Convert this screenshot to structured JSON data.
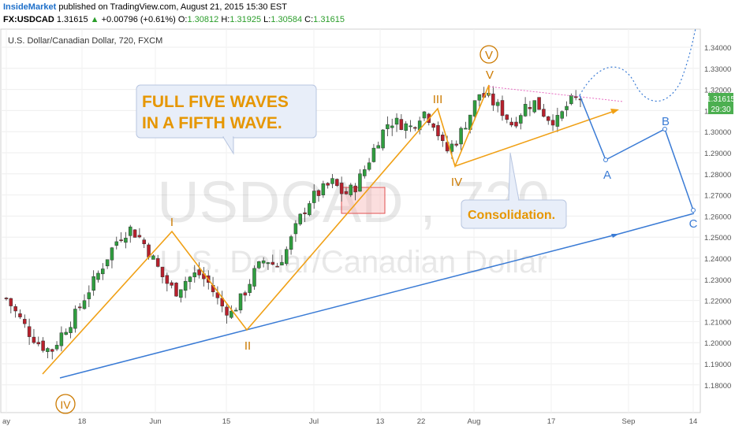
{
  "header": {
    "brand": "InsideMarket",
    "published": "published on TradingView.com, August 21, 2015 15:30 EST",
    "symbol": "FX:USDCAD",
    "last": "1.31615",
    "change_arrow": "▲",
    "change": "+0.00796 (+0.61%)",
    "o_label": "O:",
    "o": "1.30812",
    "h_label": "H:",
    "h": "1.31925",
    "l_label": "L:",
    "l": "1.30584",
    "c_label": "C:",
    "c": "1.31615"
  },
  "chart_title": "U.S. Dollar/Canadian Dollar, 720, FXCM",
  "watermark": {
    "symbol": "USDCAD , 720",
    "name": "U.S. Dollar/Canadian Dollar"
  },
  "price_badge": {
    "price": "1.31615",
    "countdown": "29:30"
  },
  "callouts": {
    "main": [
      "FULL FIVE WAVES",
      "IN A FIFTH WAVE."
    ],
    "consolidation": "Consolidation."
  },
  "wave_labels": {
    "I": "I",
    "II": "II",
    "III": "III",
    "IV": "IV",
    "V": "V",
    "circled_V": "V",
    "circled_IV": "IV",
    "A": "A",
    "B": "B",
    "C": "C"
  },
  "colors": {
    "up_candle": "#2f9e3f",
    "down_candle": "#b8202c",
    "wave": "#f0a015",
    "wave_label": "#cc7a00",
    "trendline": "#3a7bd5",
    "projection": "#3a7bd5",
    "callout_text": "#e69600",
    "dotted_res": "#e86cc2"
  },
  "chart_data": {
    "type": "candlestick",
    "title": "U.S. Dollar/Canadian Dollar, 720, FXCM",
    "y_ticks": [
      "1.34000",
      "1.33000",
      "1.32000",
      "1.31000",
      "1.30000",
      "1.29000",
      "1.28000",
      "1.27000",
      "1.26000",
      "1.25000",
      "1.24000",
      "1.23000",
      "1.22000",
      "1.21000",
      "1.20000",
      "1.19000",
      "1.18000"
    ],
    "ylim": [
      1.175,
      1.345
    ],
    "x_ticks": [
      "ay",
      "18",
      "Jun",
      "15",
      "Jul",
      "13",
      "22",
      "Aug",
      "17",
      "Sep",
      "14"
    ],
    "close_path": [
      1.221,
      1.213,
      1.205,
      1.199,
      1.196,
      1.205,
      1.212,
      1.222,
      1.231,
      1.241,
      1.25,
      1.254,
      1.249,
      1.24,
      1.23,
      1.224,
      1.23,
      1.233,
      1.228,
      1.218,
      1.214,
      1.222,
      1.233,
      1.24,
      1.236,
      1.245,
      1.258,
      1.268,
      1.272,
      1.276,
      1.27,
      1.274,
      1.284,
      1.296,
      1.305,
      1.304,
      1.302,
      1.31,
      1.304,
      1.29,
      1.296,
      1.306,
      1.318,
      1.315,
      1.31,
      1.303,
      1.312,
      1.314,
      1.307,
      1.305,
      1.314,
      1.316
    ],
    "last_price": 1.31615
  }
}
